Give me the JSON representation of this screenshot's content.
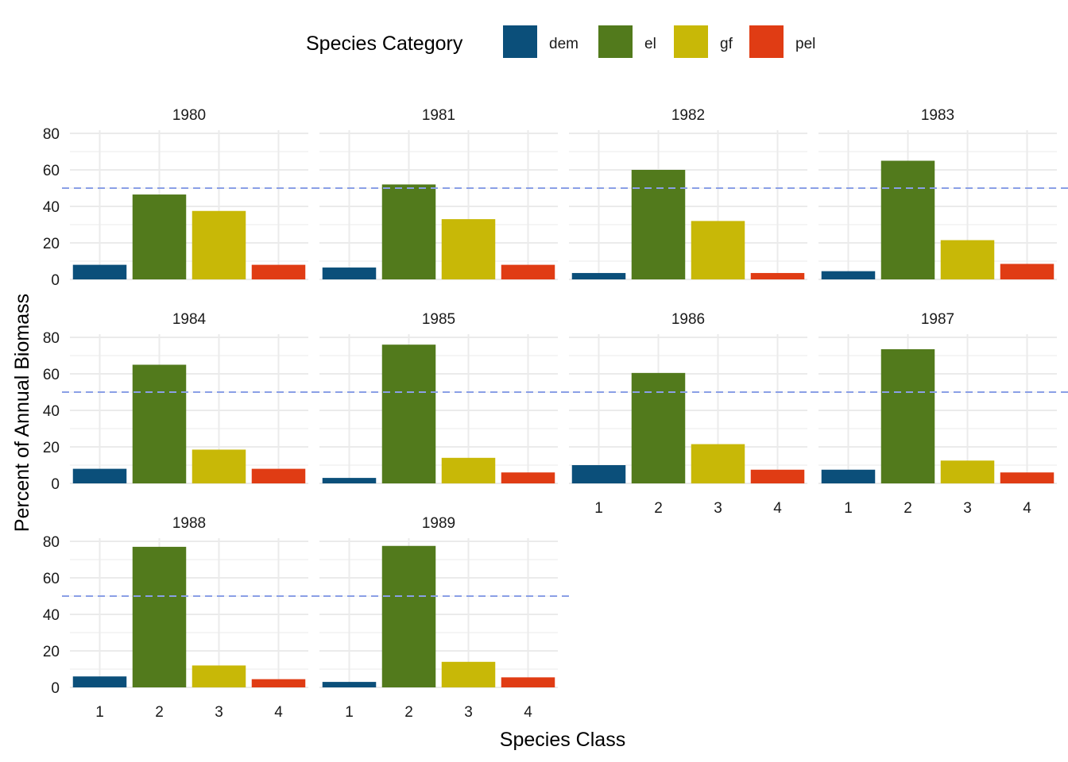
{
  "chart_data": {
    "type": "bar",
    "facet_by": "year",
    "xlabel": "Species Class",
    "ylabel": "Percent of Annual Biomass",
    "ylim": [
      0,
      80
    ],
    "y_ticks": [
      0,
      20,
      40,
      60,
      80
    ],
    "categories": [
      "1",
      "2",
      "3",
      "4"
    ],
    "reference_line": {
      "y": 50,
      "style": "dashed",
      "color": "#8a9fe6"
    },
    "legend": {
      "title": "Species Category",
      "position": "top",
      "entries": [
        {
          "name": "dem",
          "color": "#0b4f7a"
        },
        {
          "name": "el",
          "color": "#527a1c"
        },
        {
          "name": "gf",
          "color": "#c8b807"
        },
        {
          "name": "pel",
          "color": "#e03c14"
        }
      ]
    },
    "grid": true,
    "panels": [
      {
        "label": "1980",
        "values": [
          8,
          46.5,
          37.5,
          8
        ]
      },
      {
        "label": "1981",
        "values": [
          6.5,
          52,
          33,
          8
        ]
      },
      {
        "label": "1982",
        "values": [
          3.5,
          60,
          32,
          3.5
        ]
      },
      {
        "label": "1983",
        "values": [
          4.5,
          65,
          21.5,
          8.5
        ]
      },
      {
        "label": "1984",
        "values": [
          8,
          65,
          18.5,
          8
        ]
      },
      {
        "label": "1985",
        "values": [
          3,
          76,
          14,
          6
        ]
      },
      {
        "label": "1986",
        "values": [
          10,
          60.5,
          21.5,
          7.5
        ]
      },
      {
        "label": "1987",
        "values": [
          7.5,
          73.5,
          12.5,
          6
        ]
      },
      {
        "label": "1988",
        "values": [
          6,
          77,
          12,
          4.5
        ]
      },
      {
        "label": "1989",
        "values": [
          3,
          77.5,
          14,
          5.5
        ]
      }
    ]
  }
}
